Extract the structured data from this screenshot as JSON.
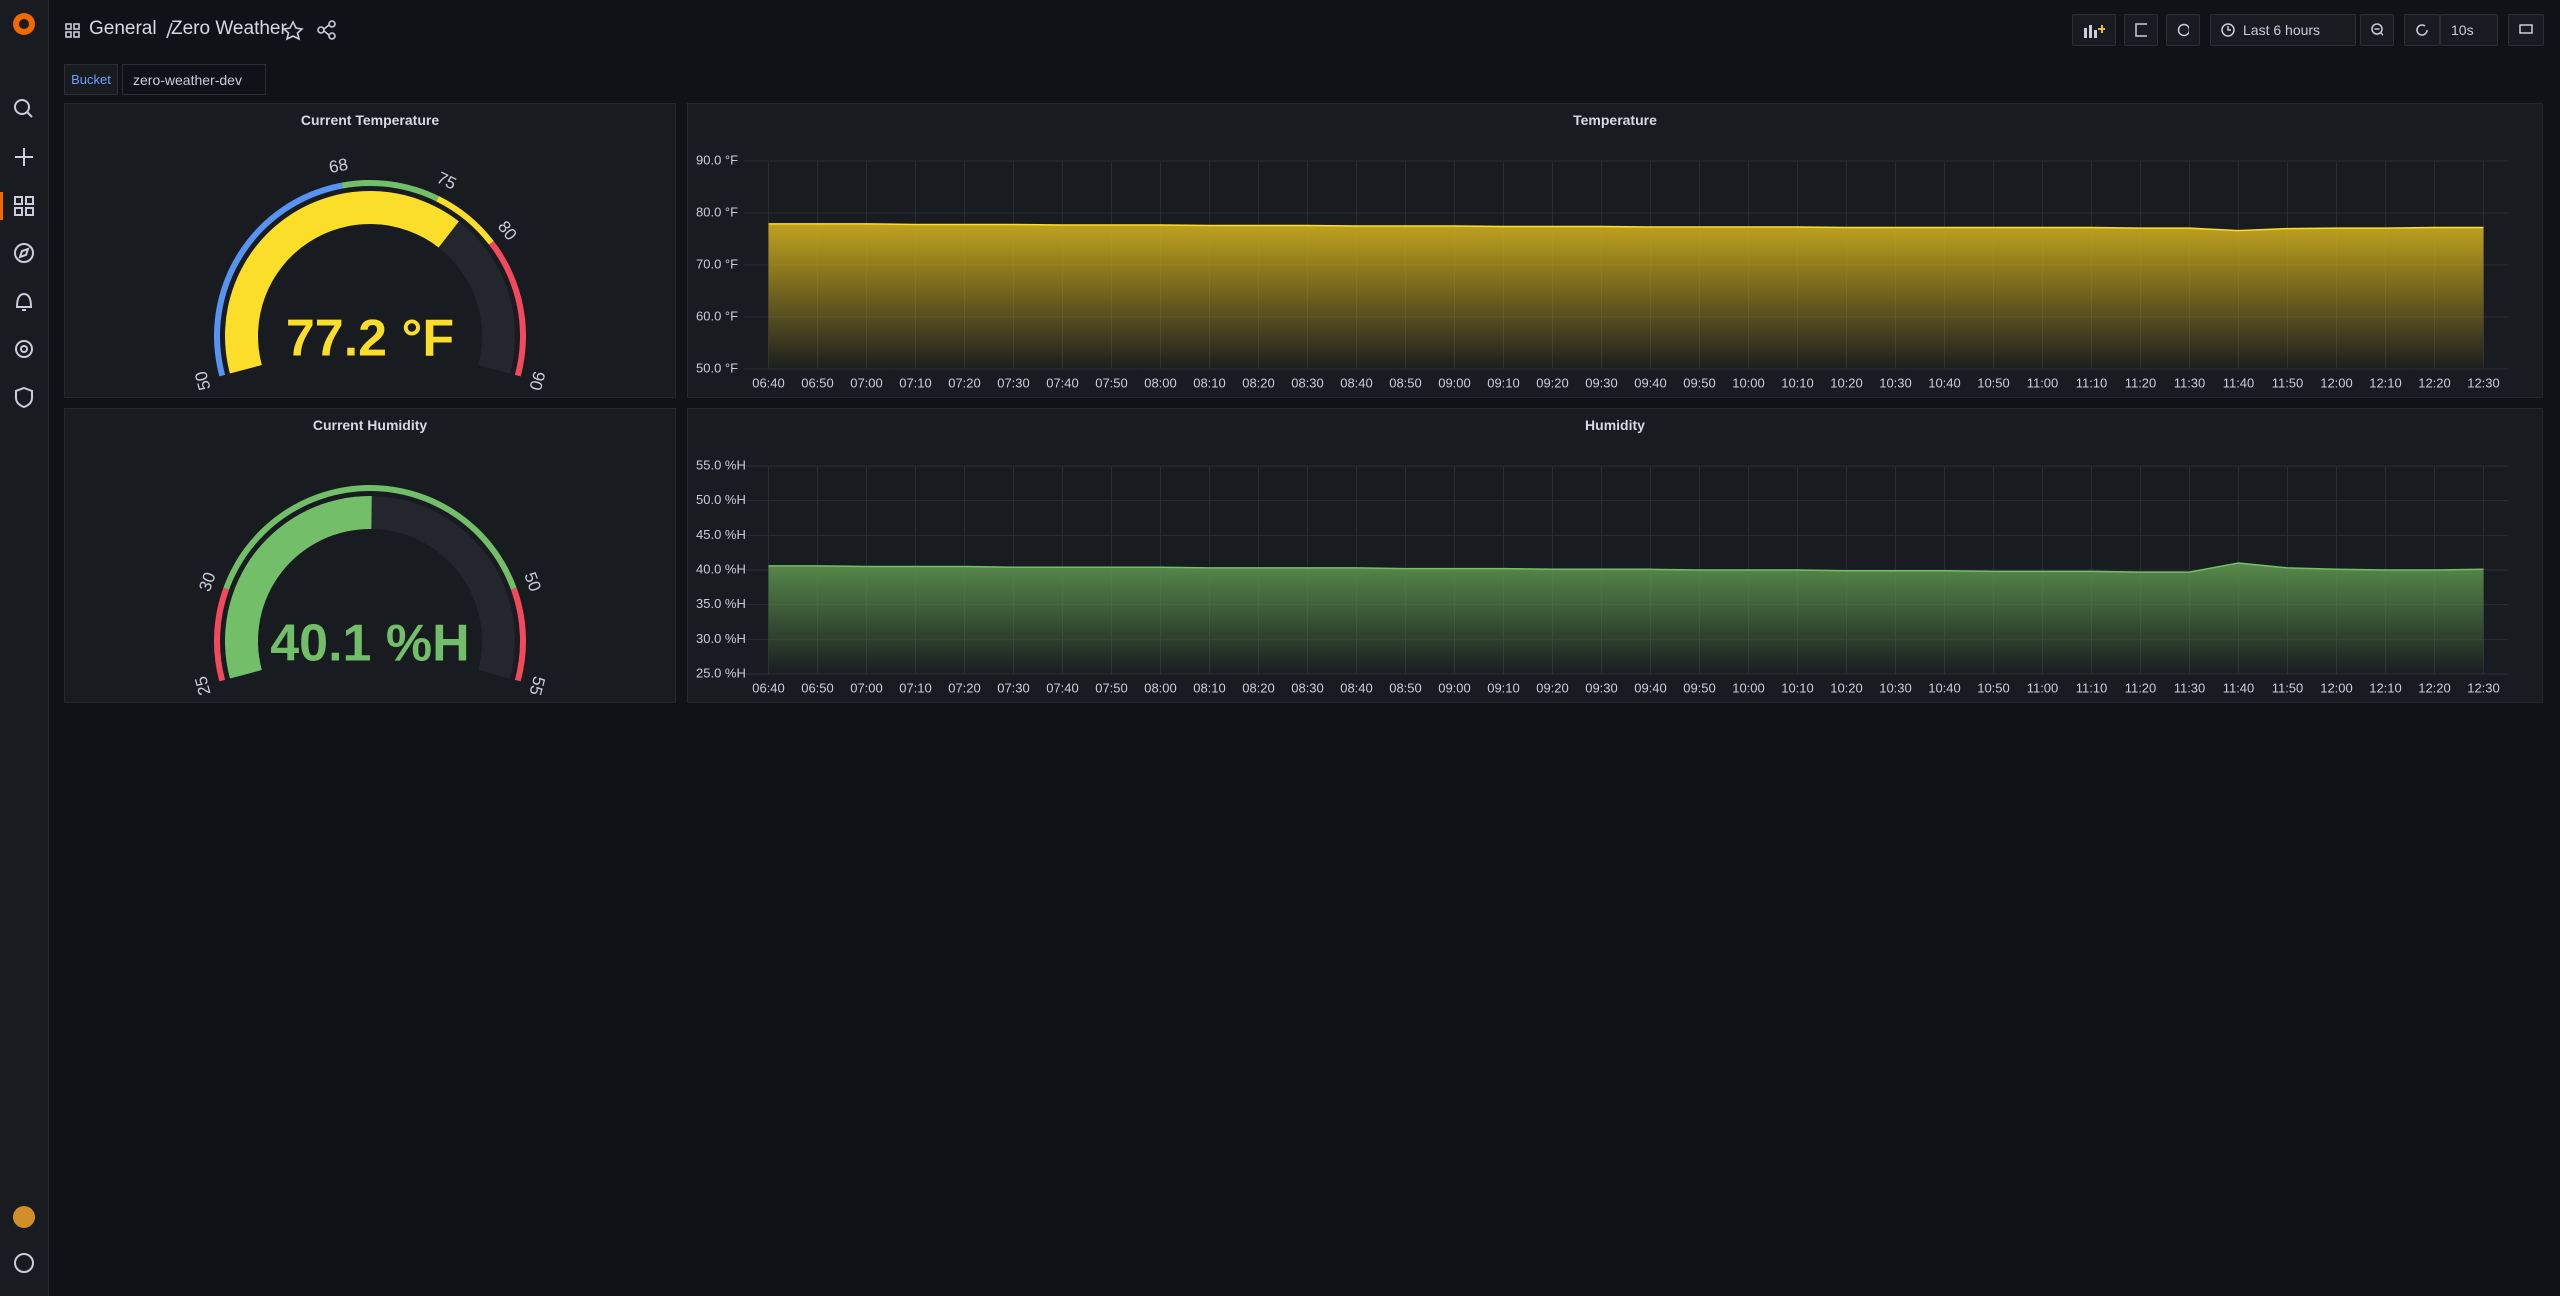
{
  "header": {
    "breadcrumb": [
      "General",
      "Zero Weather"
    ],
    "time_range": "Last 6 hours",
    "refresh": "10s"
  },
  "variables": {
    "label": "Bucket",
    "value": "zero-weather-dev"
  },
  "chart_data": [
    {
      "type": "gauge",
      "title": "Current Temperature",
      "value": 77.2,
      "value_label": "77.2 °F",
      "ylim": [
        50,
        90
      ],
      "ticks": [
        50,
        68,
        75,
        80,
        90
      ],
      "band_colors": [
        "#5794f2",
        "#73bf69",
        "#fade2a",
        "#f2495c"
      ]
    },
    {
      "type": "area",
      "title": "Temperature",
      "color": "#fade2a",
      "fill": "#c9a91e",
      "x": [
        "06:40",
        "06:50",
        "07:00",
        "07:10",
        "07:20",
        "07:30",
        "07:40",
        "07:50",
        "08:00",
        "08:10",
        "08:20",
        "08:30",
        "08:40",
        "08:50",
        "09:00",
        "09:10",
        "09:20",
        "09:30",
        "09:40",
        "09:50",
        "10:00",
        "10:10",
        "10:20",
        "10:30",
        "10:40",
        "10:50",
        "11:00",
        "11:10",
        "11:20",
        "11:30",
        "11:40",
        "11:50",
        "12:00",
        "12:10",
        "12:20",
        "12:30"
      ],
      "values": [
        77.9,
        77.9,
        77.9,
        77.8,
        77.8,
        77.8,
        77.7,
        77.7,
        77.7,
        77.6,
        77.6,
        77.6,
        77.5,
        77.5,
        77.5,
        77.4,
        77.4,
        77.4,
        77.3,
        77.3,
        77.3,
        77.3,
        77.2,
        77.2,
        77.2,
        77.2,
        77.2,
        77.2,
        77.1,
        77.1,
        76.6,
        77.0,
        77.1,
        77.1,
        77.2,
        77.2
      ],
      "ylim": [
        50,
        90
      ],
      "yticks": [
        {
          "value": 50,
          "label": "50.0 °F"
        },
        {
          "value": 60,
          "label": "60.0 °F"
        },
        {
          "value": 70,
          "label": "70.0 °F"
        },
        {
          "value": 80,
          "label": "80.0 °F"
        },
        {
          "value": 90,
          "label": "90.0 °F"
        }
      ],
      "grid": true
    },
    {
      "type": "gauge",
      "title": "Current Humidity",
      "value": 40.1,
      "value_label": "40.1 %H",
      "ylim": [
        25,
        55
      ],
      "ticks": [
        25,
        30,
        50,
        55
      ],
      "band_colors": [
        "#f2495c",
        "#73bf69",
        "#f2495c"
      ]
    },
    {
      "type": "area",
      "title": "Humidity",
      "color": "#73bf69",
      "fill": "#5b8f4c",
      "x": [
        "06:40",
        "06:50",
        "07:00",
        "07:10",
        "07:20",
        "07:30",
        "07:40",
        "07:50",
        "08:00",
        "08:10",
        "08:20",
        "08:30",
        "08:40",
        "08:50",
        "09:00",
        "09:10",
        "09:20",
        "09:30",
        "09:40",
        "09:50",
        "10:00",
        "10:10",
        "10:20",
        "10:30",
        "10:40",
        "10:50",
        "11:00",
        "11:10",
        "11:20",
        "11:30",
        "11:40",
        "11:50",
        "12:00",
        "12:10",
        "12:20",
        "12:30"
      ],
      "values": [
        40.6,
        40.6,
        40.5,
        40.5,
        40.5,
        40.4,
        40.4,
        40.4,
        40.4,
        40.3,
        40.3,
        40.3,
        40.3,
        40.2,
        40.2,
        40.2,
        40.1,
        40.1,
        40.1,
        40.0,
        40.0,
        40.0,
        39.9,
        39.9,
        39.9,
        39.8,
        39.8,
        39.8,
        39.7,
        39.7,
        41.0,
        40.3,
        40.1,
        40.0,
        40.0,
        40.1
      ],
      "ylim": [
        25,
        55
      ],
      "yticks": [
        {
          "value": 25,
          "label": "25.0 %H"
        },
        {
          "value": 30,
          "label": "30.0 %H"
        },
        {
          "value": 35,
          "label": "35.0 %H"
        },
        {
          "value": 40,
          "label": "40.0 %H"
        },
        {
          "value": 45,
          "label": "45.0 %H"
        },
        {
          "value": 50,
          "label": "50.0 %H"
        },
        {
          "value": 55,
          "label": "55.0 %H"
        }
      ],
      "grid": true
    }
  ]
}
